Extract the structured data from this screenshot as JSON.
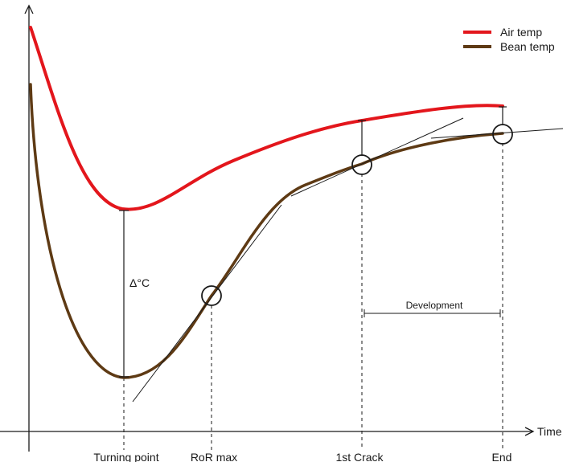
{
  "legend": {
    "items": [
      {
        "label": "Air temp",
        "color": "#e3161c"
      },
      {
        "label": "Bean temp",
        "color": "#5e3a14"
      }
    ]
  },
  "axes": {
    "x_label": "Time"
  },
  "annotations": {
    "delta": "Δ°C",
    "development": "Development"
  },
  "events": [
    {
      "label": "Turning point"
    },
    {
      "label": "RoR max"
    },
    {
      "label": "1st Crack"
    },
    {
      "label": "End"
    }
  ],
  "colors": {
    "air": "#e3161c",
    "bean": "#5e3a14",
    "ink": "#1a1a1a"
  }
}
